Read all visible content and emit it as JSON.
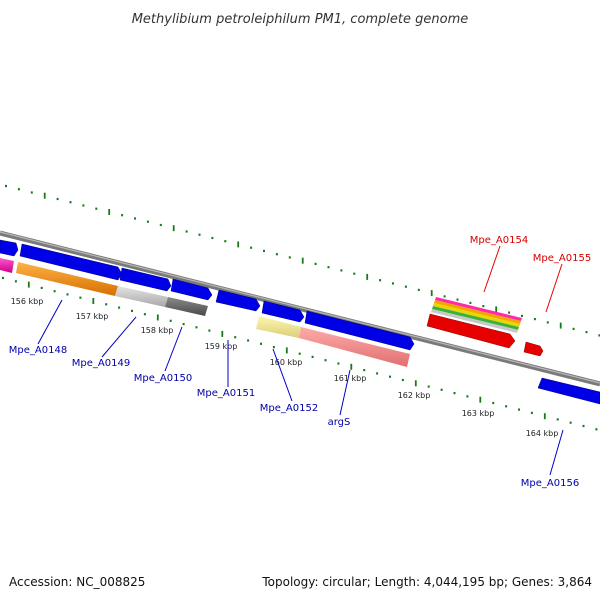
{
  "title": "Methylibium petroleiphilum PM1, complete genome",
  "footer": {
    "accession": "Accession: NC_008825",
    "topology": "Topology: circular; Length: 4,044,195 bp; Genes: 3,864"
  },
  "colors": {
    "tick": "#1a7a1a",
    "backbone": "#7a7a7a",
    "gene_blue": "#0000e6",
    "gene_red": "#e60000",
    "label_blue": "#0000aa",
    "label_red": "#d40000"
  },
  "scale": {
    "labels": [
      "156 kbp",
      "157 kbp",
      "158 kbp",
      "159 kbp",
      "160 kbp",
      "161 kbp",
      "162 kbp",
      "163 kbp",
      "164 kbp"
    ]
  },
  "gene_labels": [
    {
      "text": "Mpe_A0148",
      "color": "blue"
    },
    {
      "text": "Mpe_A0149",
      "color": "blue"
    },
    {
      "text": "Mpe_A0150",
      "color": "blue"
    },
    {
      "text": "Mpe_A0151",
      "color": "blue"
    },
    {
      "text": "Mpe_A0152",
      "color": "blue"
    },
    {
      "text": "argS",
      "color": "blue"
    },
    {
      "text": "Mpe_A0154",
      "color": "red"
    },
    {
      "text": "Mpe_A0155",
      "color": "red"
    },
    {
      "text": "Mpe_A0156",
      "color": "blue"
    }
  ]
}
